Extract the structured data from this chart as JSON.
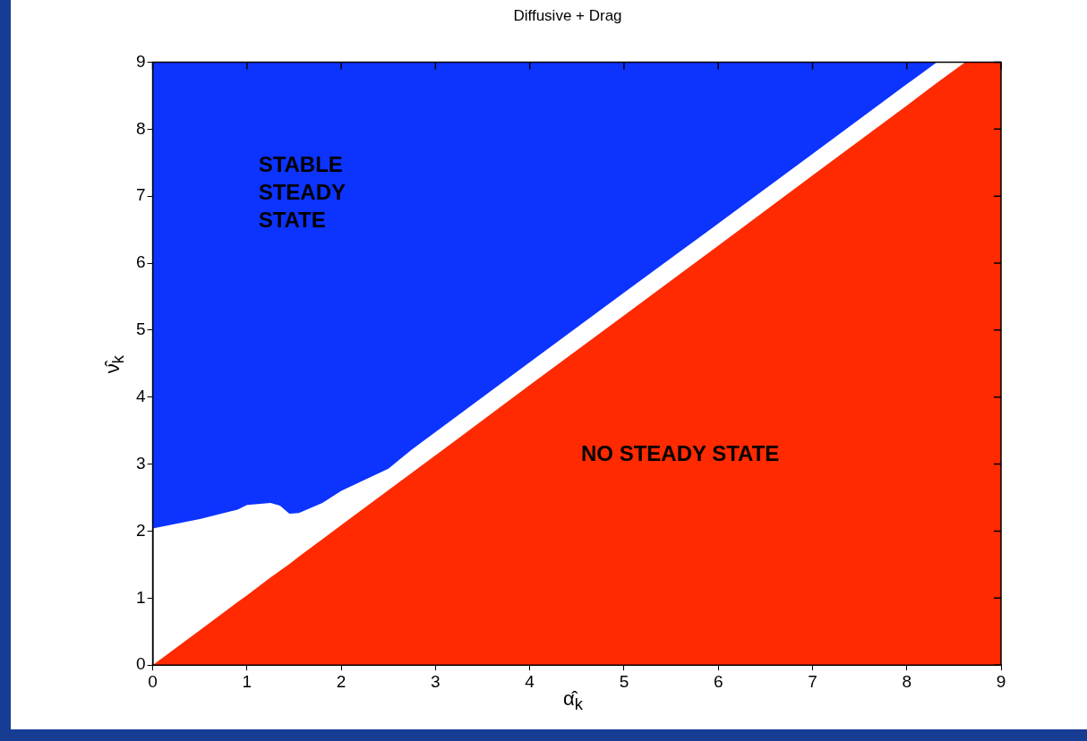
{
  "chart_data": {
    "type": "area",
    "title": "Diffusive + Drag",
    "xlabel": "α̂$_{k}$",
    "ylabel": "ν̂$_{k}$",
    "x": [
      0,
      0.5,
      0.9,
      1,
      1.25,
      1.35,
      1.45,
      1.55,
      1.8,
      2,
      2.5,
      2.75,
      3,
      4,
      5,
      6,
      7,
      8,
      8.32,
      8.62,
      9
    ],
    "series": [
      {
        "color": "#ff2a00",
        "values": [
          0,
          0.52,
          0.94,
          1.04,
          1.31,
          1.41,
          1.51,
          1.62,
          1.88,
          2.09,
          2.61,
          2.87,
          3.13,
          4.18,
          5.22,
          6.26,
          7.31,
          8.35,
          8.69,
          9,
          9
        ]
      },
      {
        "color": "#0d33ff",
        "x": [
          0,
          0,
          0.5,
          0.9,
          1,
          1.25,
          1.35,
          1.45,
          1.55,
          1.8,
          2,
          2.5,
          2.75,
          3,
          4,
          5,
          6,
          7,
          8,
          8.32,
          8.62,
          9
        ],
        "values": [
          9,
          2.04,
          2.18,
          2.32,
          2.39,
          2.42,
          2.38,
          2.26,
          2.27,
          2.42,
          2.6,
          2.93,
          3.22,
          3.48,
          4.52,
          5.56,
          6.59,
          7.63,
          8.67,
          9,
          9,
          9
        ]
      }
    ],
    "xlim": [
      0,
      9
    ],
    "xticks": [
      0,
      1,
      2,
      3,
      4,
      5,
      6,
      7,
      8,
      9
    ],
    "ylim": [
      0,
      9
    ],
    "yticks": [
      0,
      1,
      2,
      3,
      4,
      5,
      6,
      7,
      8,
      9
    ],
    "annotations": [
      "STABLE\nSTEADY\nSTATE",
      "NO STEADY STATE"
    ]
  }
}
